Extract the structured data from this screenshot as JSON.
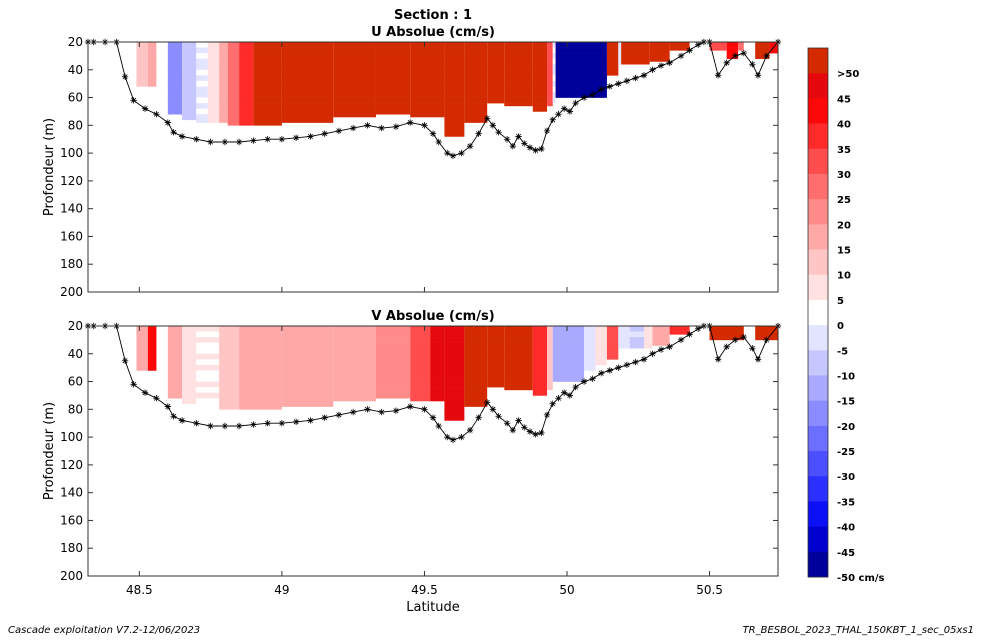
{
  "figure": {
    "section_title": "Section : 1",
    "footer_left": "Cascade exploitation V7.2-12/06/2023",
    "footer_right": "TR_BESBOL_2023_THAL_150KBT_1_sec_05xs1"
  },
  "chart_data": [
    {
      "type": "heatmap",
      "title": "U Absolue (cm/s)",
      "xlabel": "",
      "ylabel": "Profondeur (m)",
      "xlim": [
        48.32,
        50.74
      ],
      "ylim": [
        200,
        20
      ],
      "x_ticks": [
        48.5,
        49,
        49.5,
        50,
        50.5
      ],
      "x_tick_labels": [],
      "y_ticks": [
        20,
        40,
        60,
        80,
        100,
        120,
        140,
        160,
        180,
        200
      ],
      "y_tick_labels": [
        "20",
        "40",
        "60",
        "80",
        "100",
        "120",
        "140",
        "160",
        "180",
        "200"
      ],
      "grid": false,
      "columns": [
        {
          "x0": 48.49,
          "x1": 48.53,
          "bottom": 52,
          "v": 10
        },
        {
          "x0": 48.53,
          "x1": 48.56,
          "bottom": 52,
          "v": 15
        },
        {
          "x0": 48.6,
          "x1": 48.65,
          "bottom": 72,
          "v": -20
        },
        {
          "x0": 48.65,
          "x1": 48.7,
          "bottom": 76,
          "v": -10
        },
        {
          "x0": 48.7,
          "x1": 48.74,
          "bottom": 78,
          "v": -3
        },
        {
          "x0": 48.74,
          "x1": 48.78,
          "bottom": 78,
          "v": 5
        },
        {
          "x0": 48.78,
          "x1": 48.81,
          "bottom": 78,
          "v": 15
        },
        {
          "x0": 48.81,
          "x1": 48.85,
          "bottom": 80,
          "v": 25
        },
        {
          "x0": 48.85,
          "x1": 48.9,
          "bottom": 80,
          "v": 35
        },
        {
          "x0": 48.9,
          "x1": 49.0,
          "bottom": 80,
          "v": 55
        },
        {
          "x0": 49.0,
          "x1": 49.18,
          "bottom": 78,
          "v": 55
        },
        {
          "x0": 49.18,
          "x1": 49.33,
          "bottom": 74,
          "v": 55
        },
        {
          "x0": 49.33,
          "x1": 49.45,
          "bottom": 72,
          "v": 55
        },
        {
          "x0": 49.45,
          "x1": 49.57,
          "bottom": 74,
          "v": 55
        },
        {
          "x0": 49.57,
          "x1": 49.64,
          "bottom": 88,
          "v": 55
        },
        {
          "x0": 49.64,
          "x1": 49.72,
          "bottom": 78,
          "v": 55
        },
        {
          "x0": 49.72,
          "x1": 49.78,
          "bottom": 64,
          "v": 55
        },
        {
          "x0": 49.78,
          "x1": 49.88,
          "bottom": 66,
          "v": 55
        },
        {
          "x0": 49.88,
          "x1": 49.93,
          "bottom": 70,
          "v": 55
        },
        {
          "x0": 49.93,
          "x1": 49.95,
          "bottom": 66,
          "v": 30
        },
        {
          "x0": 49.95,
          "x1": 49.96,
          "bottom": 64,
          "v": -3
        },
        {
          "x0": 49.96,
          "x1": 50.14,
          "bottom": 60,
          "v": -55
        },
        {
          "x0": 50.14,
          "x1": 50.18,
          "bottom": 44,
          "v": 55
        },
        {
          "x0": 50.18,
          "x1": 50.19,
          "bottom": 36,
          "v": -5
        },
        {
          "x0": 50.19,
          "x1": 50.29,
          "bottom": 36,
          "v": 55
        },
        {
          "x0": 50.29,
          "x1": 50.36,
          "bottom": 34,
          "v": 55
        },
        {
          "x0": 50.36,
          "x1": 50.43,
          "bottom": 26,
          "v": 55
        },
        {
          "x0": 50.5,
          "x1": 50.56,
          "bottom": 26,
          "v": 30
        },
        {
          "x0": 50.56,
          "x1": 50.6,
          "bottom": 32,
          "v": 40
        },
        {
          "x0": 50.6,
          "x1": 50.62,
          "bottom": 26,
          "v": 25
        },
        {
          "x0": 50.66,
          "x1": 50.71,
          "bottom": 32,
          "v": 55
        },
        {
          "x0": 50.71,
          "x1": 50.74,
          "bottom": 28,
          "v": 40
        }
      ],
      "bottom_profile": {
        "x": [
          48.32,
          48.34,
          48.38,
          48.42,
          48.45,
          48.48,
          48.52,
          48.56,
          48.6,
          48.62,
          48.65,
          48.7,
          48.75,
          48.8,
          48.85,
          48.9,
          48.95,
          49.0,
          49.05,
          49.1,
          49.15,
          49.2,
          49.25,
          49.3,
          49.35,
          49.4,
          49.45,
          49.5,
          49.53,
          49.55,
          49.58,
          49.6,
          49.63,
          49.66,
          49.69,
          49.72,
          49.74,
          49.76,
          49.79,
          49.81,
          49.83,
          49.85,
          49.87,
          49.89,
          49.91,
          49.93,
          49.95,
          49.97,
          49.99,
          50.01,
          50.03,
          50.06,
          50.09,
          50.12,
          50.15,
          50.18,
          50.21,
          50.24,
          50.27,
          50.3,
          50.33,
          50.36,
          50.4,
          50.43,
          50.46,
          50.48,
          50.5,
          50.53,
          50.56,
          50.59,
          50.62,
          50.65,
          50.67,
          50.7,
          50.74
        ],
        "y": [
          20,
          20,
          20,
          20,
          45,
          62,
          68,
          72,
          78,
          85,
          88,
          90,
          92,
          92,
          92,
          91,
          90,
          90,
          89,
          88,
          86,
          84,
          82,
          80,
          82,
          81,
          78,
          80,
          86,
          92,
          100,
          102,
          100,
          95,
          86,
          75,
          80,
          85,
          90,
          95,
          88,
          93,
          96,
          98,
          97,
          84,
          76,
          72,
          68,
          70,
          64,
          60,
          58,
          54,
          52,
          50,
          48,
          46,
          44,
          40,
          37,
          35,
          30,
          26,
          22,
          20,
          20,
          44,
          35,
          30,
          28,
          36,
          44,
          30,
          20
        ]
      },
      "colorbar": {
        "labels": [
          ">50",
          "45",
          "40",
          "35",
          "30",
          "25",
          "20",
          "15",
          "10",
          "5",
          "0",
          "-5",
          "-10",
          "-15",
          "-20",
          "-25",
          "-30",
          "-35",
          "-40",
          "-45",
          "-50 cm/s"
        ],
        "colors": [
          "#d42a00",
          "#e5090d",
          "#fc0808",
          "#ff2b2b",
          "#ff4d4d",
          "#ff6e6e",
          "#ff8b8b",
          "#ffa8a8",
          "#ffc4c4",
          "#ffe1e1",
          "#ffffff",
          "#e3e4ff",
          "#c6c7ff",
          "#a9aaff",
          "#8a8cff",
          "#6b6eff",
          "#4b4fff",
          "#2b2fff",
          "#0c10f5",
          "#0000cf",
          "#00009a"
        ]
      }
    },
    {
      "type": "heatmap",
      "title": "V Absolue (cm/s)",
      "xlabel": "Latitude",
      "ylabel": "Profondeur (m)",
      "xlim": [
        48.32,
        50.74
      ],
      "ylim": [
        200,
        20
      ],
      "x_ticks": [
        48.5,
        49,
        49.5,
        50,
        50.5
      ],
      "x_tick_labels": [
        "48.5",
        "49",
        "49.5",
        "50",
        "50.5"
      ],
      "y_ticks": [
        20,
        40,
        60,
        80,
        100,
        120,
        140,
        160,
        180,
        200
      ],
      "y_tick_labels": [
        "20",
        "40",
        "60",
        "80",
        "100",
        "120",
        "140",
        "160",
        "180",
        "200"
      ],
      "grid": false,
      "columns": [
        {
          "x0": 48.49,
          "x1": 48.53,
          "bottom": 52,
          "v": 15
        },
        {
          "x0": 48.53,
          "x1": 48.56,
          "bottom": 52,
          "v": 40
        },
        {
          "x0": 48.6,
          "x1": 48.65,
          "bottom": 72,
          "v": 15
        },
        {
          "x0": 48.65,
          "x1": 48.7,
          "bottom": 76,
          "v": 5
        },
        {
          "x0": 48.7,
          "x1": 48.78,
          "bottom": 78,
          "v": 2
        },
        {
          "x0": 48.78,
          "x1": 48.85,
          "bottom": 80,
          "v": 10
        },
        {
          "x0": 48.85,
          "x1": 49.0,
          "bottom": 80,
          "v": 15
        },
        {
          "x0": 49.0,
          "x1": 49.18,
          "bottom": 78,
          "v": 15
        },
        {
          "x0": 49.18,
          "x1": 49.33,
          "bottom": 74,
          "v": 15
        },
        {
          "x0": 49.33,
          "x1": 49.45,
          "bottom": 72,
          "v": 20
        },
        {
          "x0": 49.45,
          "x1": 49.52,
          "bottom": 74,
          "v": 30
        },
        {
          "x0": 49.52,
          "x1": 49.57,
          "bottom": 74,
          "v": 45
        },
        {
          "x0": 49.57,
          "x1": 49.64,
          "bottom": 88,
          "v": 45
        },
        {
          "x0": 49.64,
          "x1": 49.72,
          "bottom": 78,
          "v": 55
        },
        {
          "x0": 49.72,
          "x1": 49.78,
          "bottom": 64,
          "v": 55
        },
        {
          "x0": 49.78,
          "x1": 49.88,
          "bottom": 66,
          "v": 55
        },
        {
          "x0": 49.88,
          "x1": 49.93,
          "bottom": 70,
          "v": 35
        },
        {
          "x0": 49.93,
          "x1": 49.95,
          "bottom": 66,
          "v": 10
        },
        {
          "x0": 49.95,
          "x1": 50.06,
          "bottom": 60,
          "v": -15
        },
        {
          "x0": 50.06,
          "x1": 50.1,
          "bottom": 52,
          "v": -5
        },
        {
          "x0": 50.1,
          "x1": 50.14,
          "bottom": 48,
          "v": 5
        },
        {
          "x0": 50.14,
          "x1": 50.18,
          "bottom": 44,
          "v": 30
        },
        {
          "x0": 50.18,
          "x1": 50.22,
          "bottom": 36,
          "v": -5
        },
        {
          "x0": 50.22,
          "x1": 50.27,
          "bottom": 36,
          "v": -8
        },
        {
          "x0": 50.27,
          "x1": 50.3,
          "bottom": 36,
          "v": 5
        },
        {
          "x0": 50.3,
          "x1": 50.36,
          "bottom": 34,
          "v": 15
        },
        {
          "x0": 50.36,
          "x1": 50.43,
          "bottom": 26,
          "v": 35
        },
        {
          "x0": 50.5,
          "x1": 50.62,
          "bottom": 30,
          "v": 55
        },
        {
          "x0": 50.66,
          "x1": 50.74,
          "bottom": 30,
          "v": 55
        }
      ],
      "bottom_profile": "same_as_U"
    }
  ]
}
